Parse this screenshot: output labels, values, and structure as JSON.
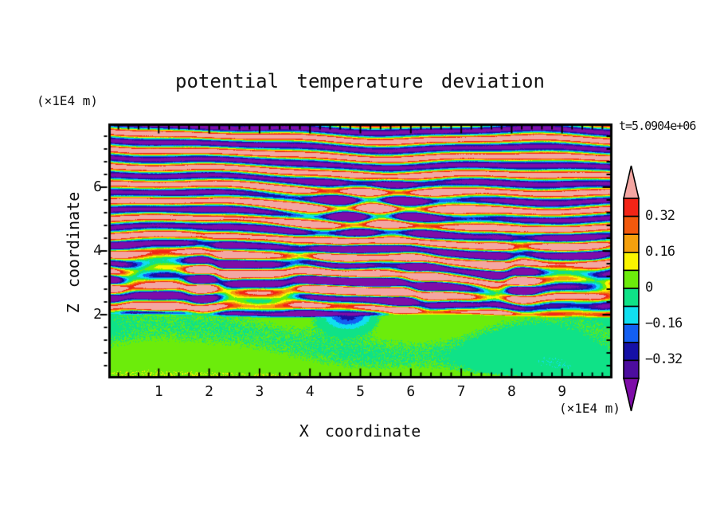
{
  "title": "potential temperature deviation",
  "labels": {
    "z_axis_unit": "(×1E4 m)",
    "x_axis_unit": "(×1E4 m)",
    "time": "t=5.0904e+06",
    "x_axis_title": "X coordinate",
    "z_axis_title": "Z coordinate"
  },
  "chart_data": {
    "type": "filled-contour-heatmap",
    "title": "potential temperature deviation",
    "xlabel": "X coordinate",
    "ylabel": "Z coordinate",
    "x_unit": "×1E4 m",
    "z_unit": "×1E4 m",
    "time_annotation": "t=5.0904e+06",
    "x_range": [
      0,
      10
    ],
    "z_range": [
      0,
      8
    ],
    "x_major_ticks": [
      1,
      2,
      3,
      4,
      5,
      6,
      7,
      8,
      9
    ],
    "x_tick_labels": [
      "1",
      "2",
      "3",
      "4",
      "5",
      "6",
      "7",
      "8",
      "9"
    ],
    "x_minor_step": 0.2,
    "z_major_ticks": [
      2,
      4,
      6
    ],
    "z_tick_labels": [
      "2",
      "4",
      "6"
    ],
    "z_minor_step": 0.4,
    "grid": false,
    "contour_levels": [
      -0.4,
      -0.32,
      -0.24,
      -0.16,
      -0.08,
      0,
      0.08,
      0.16,
      0.24,
      0.32,
      0.4
    ],
    "palette_top_to_bottom": [
      {
        "range": "> 0.40",
        "color": "#F4A6A2",
        "name": "pink"
      },
      {
        "range": "0.32 to 0.40",
        "color": "#F32517",
        "name": "red"
      },
      {
        "range": "0.24 to 0.32",
        "color": "#F2590D",
        "name": "orange-red"
      },
      {
        "range": "0.16 to 0.24",
        "color": "#F5A00D",
        "name": "orange"
      },
      {
        "range": "0.08 to 0.16",
        "color": "#FAF500",
        "name": "yellow"
      },
      {
        "range": "0 to 0.08",
        "color": "#6CEC0B",
        "name": "chartreuse"
      },
      {
        "range": "-0.08 to 0",
        "color": "#0FE287",
        "name": "spring-green"
      },
      {
        "range": "-0.16 to -0.08",
        "color": "#10DFF0",
        "name": "cyan"
      },
      {
        "range": "-0.24 to -0.16",
        "color": "#135FF2",
        "name": "blue"
      },
      {
        "range": "-0.32 to -0.24",
        "color": "#1510A6",
        "name": "navy"
      },
      {
        "range": "-0.40 to -0.32",
        "color": "#4C0D9E",
        "name": "indigo"
      },
      {
        "range": "< -0.40",
        "color": "#7E0DA8",
        "name": "purple"
      }
    ],
    "colorbar_labels": [
      {
        "text": "0.32",
        "boundary_index": 1
      },
      {
        "text": "0.16",
        "boundary_index": 3
      },
      {
        "text": "0",
        "boundary_index": 5
      },
      {
        "text": "−0.16",
        "boundary_index": 7
      },
      {
        "text": "−0.32",
        "boundary_index": 9
      }
    ],
    "field_description": "2D vertical cross-section (x 0-10 x1E4 m, z 0-8 x1E4 m) of potential temperature deviation at t=5.0904e+06. Above z~2 the field shows tilted alternating horizontal gravity-wave bands saturating positive (pink, >0.4) and negative (purple, <-0.4) with thin rainbow contour fringes; between z~2 and z~4.5 the bands break into fine turbulent streaks of red/orange/yellow/cyan/blue/navy; below the sharp interface at z~2 the deviation is weak (within ±0.08), forming smooth swirling chartreuse and spring-green patches with a small cyan/blue plume near x~4.8 just below the interface and a thin chartreuse strip along the bottom boundary.",
    "field_model": {
      "interface_z": 2.0,
      "interface_wiggle_amp": 0.06,
      "interface_wiggle_freq": 1.1,
      "band_frequency": 1.85,
      "band_tilt": 0.05,
      "warp_terms": [
        [
          0.14,
          0.62,
          0.5,
          1.2
        ],
        [
          0.08,
          1.35,
          -0.85,
          0.3
        ],
        [
          0.045,
          2.6,
          1.5,
          2.0
        ]
      ],
      "positive_amplitude": 0.55,
      "negative_amplitude": 0.47,
      "turbulence": {
        "center_z": 3.0,
        "width_z": 1.2,
        "amplitude": 0.62
      },
      "burst": {
        "x": 5.2,
        "z": 5.3,
        "sx": 2.4,
        "sz": 0.8,
        "amplitude": 0.45
      },
      "lower_amplitude": 0.07,
      "bottom_strip_amplitude": 0.08,
      "plume": {
        "x": 4.75,
        "z": 2.0,
        "sx": 0.45,
        "sz": 0.4,
        "amplitude": -0.33
      },
      "edge_noise": 0.012
    }
  }
}
